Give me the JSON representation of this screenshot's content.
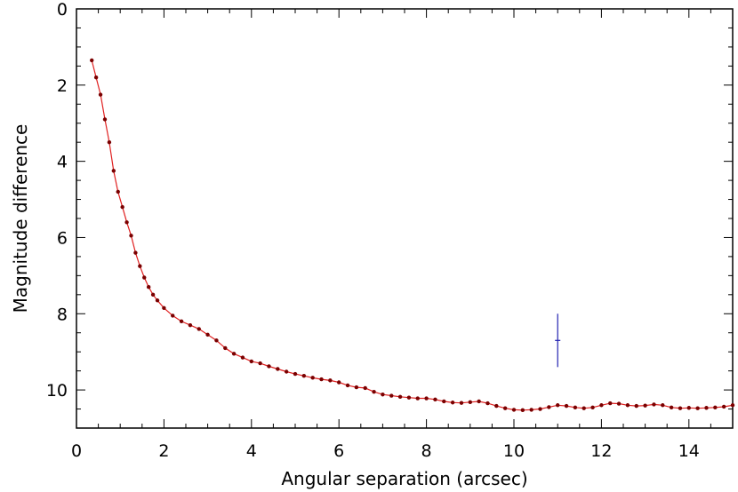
{
  "chart_data": {
    "type": "scatter",
    "xlabel": "Angular separation (arcsec)",
    "ylabel": "Magnitude difference",
    "xlim": [
      0,
      15
    ],
    "ylim": [
      11,
      0
    ],
    "y_inverted": true,
    "xticks": [
      "0",
      "2",
      "4",
      "6",
      "8",
      "10",
      "12",
      "14"
    ],
    "yticks": [
      "0",
      "2",
      "4",
      "6",
      "8",
      "10"
    ],
    "grid": false,
    "colors": {
      "curve": "#e02020",
      "points": "#7a0000",
      "marker": "#2020b0",
      "axes": "#000000"
    },
    "series": [
      {
        "style": "line-with-points",
        "x": [
          0.35,
          0.45,
          0.55,
          0.65,
          0.75,
          0.85,
          0.95,
          1.05,
          1.15,
          1.25,
          1.35,
          1.45,
          1.55,
          1.65,
          1.75,
          1.85,
          2.0,
          2.2,
          2.4,
          2.6,
          2.8,
          3.0,
          3.2,
          3.4,
          3.6,
          3.8,
          4.0,
          4.2,
          4.4,
          4.6,
          4.8,
          5.0,
          5.2,
          5.4,
          5.6,
          5.8,
          6.0,
          6.2,
          6.4,
          6.6,
          6.8,
          7.0,
          7.2,
          7.4,
          7.6,
          7.8,
          8.0,
          8.2,
          8.4,
          8.6,
          8.8,
          9.0,
          9.2,
          9.4,
          9.6,
          9.8,
          10.0,
          10.2,
          10.4,
          10.6,
          10.8,
          11.0,
          11.2,
          11.4,
          11.6,
          11.8,
          12.0,
          12.2,
          12.4,
          12.6,
          12.8,
          13.0,
          13.2,
          13.4,
          13.6,
          13.8,
          14.0,
          14.2,
          14.4,
          14.6,
          14.8,
          15.0
        ],
        "y": [
          1.35,
          1.8,
          2.25,
          2.9,
          3.5,
          4.25,
          4.8,
          5.2,
          5.6,
          5.95,
          6.4,
          6.75,
          7.05,
          7.3,
          7.5,
          7.65,
          7.85,
          8.05,
          8.2,
          8.3,
          8.4,
          8.55,
          8.7,
          8.9,
          9.05,
          9.15,
          9.25,
          9.3,
          9.38,
          9.45,
          9.52,
          9.58,
          9.63,
          9.68,
          9.72,
          9.75,
          9.8,
          9.88,
          9.93,
          9.95,
          10.05,
          10.12,
          10.15,
          10.18,
          10.2,
          10.22,
          10.22,
          10.25,
          10.3,
          10.33,
          10.34,
          10.32,
          10.3,
          10.35,
          10.42,
          10.48,
          10.52,
          10.53,
          10.52,
          10.5,
          10.45,
          10.4,
          10.42,
          10.46,
          10.48,
          10.46,
          10.4,
          10.35,
          10.36,
          10.4,
          10.42,
          10.41,
          10.38,
          10.4,
          10.46,
          10.48,
          10.47,
          10.48,
          10.47,
          10.46,
          10.44,
          10.4
        ]
      }
    ],
    "marker": {
      "x": 11.0,
      "y": 8.7,
      "y_low": 8.0,
      "y_high": 9.4
    }
  }
}
